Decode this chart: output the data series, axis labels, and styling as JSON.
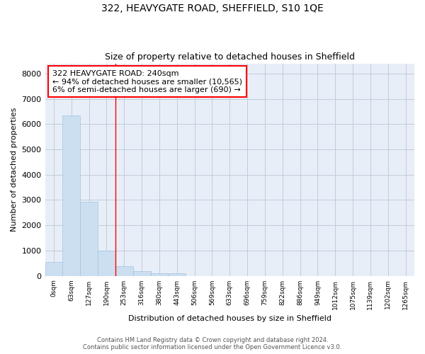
{
  "title": "322, HEAVYGATE ROAD, SHEFFIELD, S10 1QE",
  "subtitle": "Size of property relative to detached houses in Sheffield",
  "xlabel": "Distribution of detached houses by size in Sheffield",
  "ylabel": "Number of detached properties",
  "bar_color": "#ccdff0",
  "bar_edge_color": "#a0c4de",
  "background_color": "#e8eef8",
  "grid_color": "#c0ccd8",
  "categories": [
    "0sqm",
    "63sqm",
    "127sqm",
    "190sqm",
    "253sqm",
    "316sqm",
    "380sqm",
    "443sqm",
    "506sqm",
    "569sqm",
    "633sqm",
    "696sqm",
    "759sqm",
    "822sqm",
    "886sqm",
    "949sqm",
    "1012sqm",
    "1075sqm",
    "1139sqm",
    "1202sqm",
    "1265sqm"
  ],
  "values": [
    560,
    6350,
    2930,
    1000,
    380,
    175,
    100,
    100,
    0,
    0,
    0,
    0,
    0,
    0,
    0,
    0,
    0,
    0,
    0,
    0,
    0
  ],
  "red_line_index": 4,
  "annotation_text": "322 HEAVYGATE ROAD: 240sqm\n← 94% of detached houses are smaller (10,565)\n6% of semi-detached houses are larger (690) →",
  "ylim": [
    0,
    8400
  ],
  "yticks": [
    0,
    1000,
    2000,
    3000,
    4000,
    5000,
    6000,
    7000,
    8000
  ],
  "footer_line1": "Contains HM Land Registry data © Crown copyright and database right 2024.",
  "footer_line2": "Contains public sector information licensed under the Open Government Licence v3.0."
}
